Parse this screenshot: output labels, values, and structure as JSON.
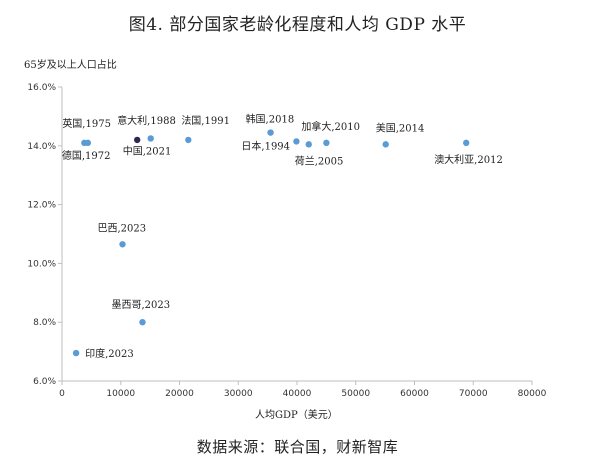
{
  "chart_data": {
    "type": "scatter",
    "title": "图4. 部分国家老龄化程度和人均 GDP 水平",
    "ylabel": "65岁及以上人口占比",
    "xlabel": "人均GDP（美元）",
    "source": "数据来源：联合国，财新智库",
    "xlim": [
      0,
      80000
    ],
    "ylim": [
      6.0,
      16.0
    ],
    "x_ticks": [
      "0",
      "10000",
      "20000",
      "30000",
      "40000",
      "50000",
      "60000",
      "70000",
      "80000"
    ],
    "y_ticks": [
      "6.0%",
      "8.0%",
      "10.0%",
      "12.0%",
      "14.0%",
      "16.0%"
    ],
    "grid": false,
    "colors": {
      "point": "#5b9bd5",
      "highlight": "#2f2750"
    },
    "points": [
      {
        "label": "英国,1975",
        "x": 3800,
        "y": 14.1
      },
      {
        "label": "德国,1972",
        "x": 4400,
        "y": 14.1
      },
      {
        "label": "意大利,1988",
        "x": 12800,
        "y": 14.2,
        "highlight": true
      },
      {
        "label": "中国,2021",
        "x": 15100,
        "y": 14.25
      },
      {
        "label": "法国,1991",
        "x": 21500,
        "y": 14.2
      },
      {
        "label": "韩国,2018",
        "x": 35500,
        "y": 14.45
      },
      {
        "label": "日本,1994",
        "x": 39900,
        "y": 14.15
      },
      {
        "label": "荷兰,2005",
        "x": 42000,
        "y": 14.05
      },
      {
        "label": "加拿大,2010",
        "x": 45000,
        "y": 14.1
      },
      {
        "label": "美国,2014",
        "x": 55100,
        "y": 14.05
      },
      {
        "label": "澳大利亚,2012",
        "x": 68800,
        "y": 14.1
      },
      {
        "label": "巴西,2023",
        "x": 10300,
        "y": 10.65
      },
      {
        "label": "墨西哥,2023",
        "x": 13700,
        "y": 8.0
      },
      {
        "label": "印度,2023",
        "x": 2400,
        "y": 6.95
      }
    ]
  }
}
